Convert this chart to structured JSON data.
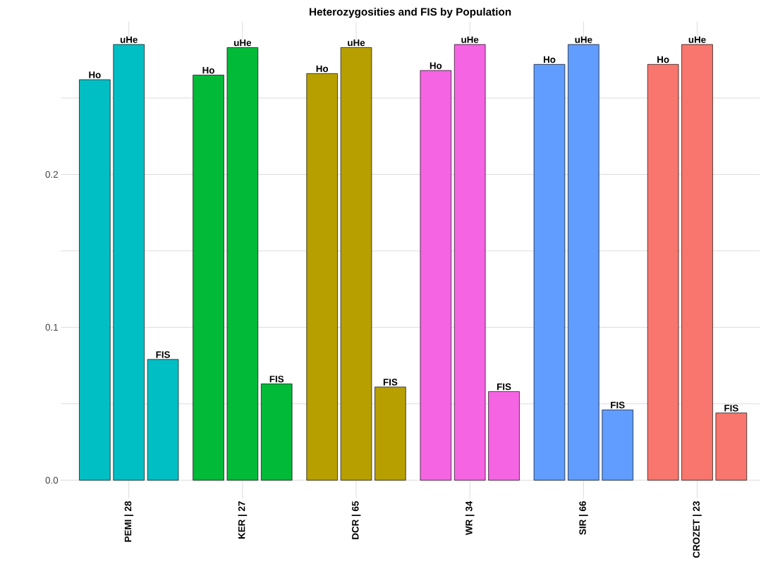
{
  "chart_data": {
    "type": "bar",
    "title": "Heterozygosities and FIS by Population",
    "categories": [
      "PEMI | 28",
      "KER | 27",
      "DCR | 65",
      "WR | 34",
      "SIR | 66",
      "CROZET | 23"
    ],
    "series": [
      {
        "name": "Ho",
        "colors": [
          "#00bfc4",
          "#00ba38",
          "#b79f00",
          "#f564e3",
          "#619cff",
          "#f8766d"
        ],
        "values": [
          0.262,
          0.265,
          0.266,
          0.268,
          0.272,
          0.272
        ]
      },
      {
        "name": "uHe",
        "colors": [
          "#00bfc4",
          "#00ba38",
          "#b79f00",
          "#f564e3",
          "#619cff",
          "#f8766d"
        ],
        "values": [
          0.285,
          0.283,
          0.283,
          0.285,
          0.285,
          0.285
        ]
      },
      {
        "name": "FIS",
        "colors": [
          "#00bfc4",
          "#00ba38",
          "#b79f00",
          "#f564e3",
          "#619cff",
          "#f8766d"
        ],
        "values": [
          0.079,
          0.063,
          0.061,
          0.058,
          0.046,
          0.044
        ]
      }
    ],
    "ylim": [
      -0.012,
      0.3
    ],
    "yticks": [
      {
        "value": 0,
        "label": "0.0"
      },
      {
        "value": 0.05,
        "label": null
      },
      {
        "value": 0.1,
        "label": "0.1"
      },
      {
        "value": 0.15,
        "label": null
      },
      {
        "value": 0.2,
        "label": "0.2"
      },
      {
        "value": 0.25,
        "label": null
      }
    ],
    "grid": true
  }
}
